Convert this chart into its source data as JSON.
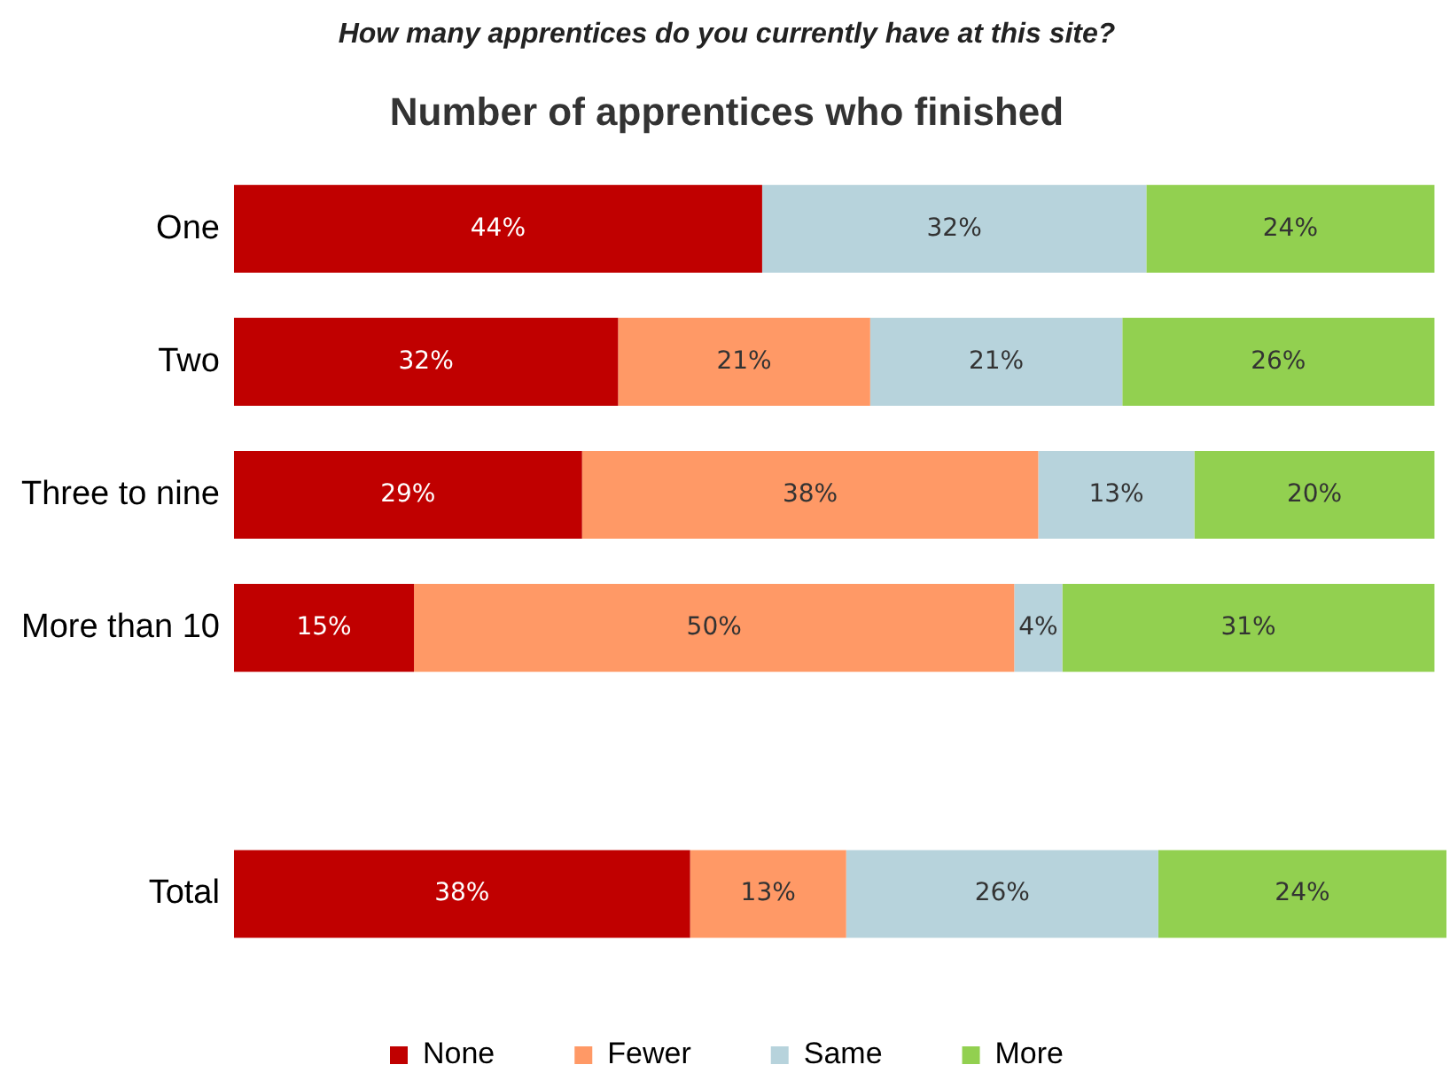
{
  "chart_data": {
    "type": "bar",
    "orientation": "horizontal",
    "stacked": true,
    "title": "How many apprentices do you currently have at this site?",
    "subtitle": "Number of apprentices who finished",
    "categories": [
      "One",
      "Two",
      "Three to nine",
      "More than 10",
      null,
      "Total"
    ],
    "legend": "bottom",
    "grid": false,
    "series": [
      {
        "name": "None",
        "color": "#c00000",
        "values": [
          44,
          32,
          29,
          15,
          null,
          38
        ],
        "value_labels": [
          "44%",
          "32%",
          "29%",
          "15%",
          null,
          "38%"
        ]
      },
      {
        "name": "Fewer",
        "color": "#ff9966",
        "values": [
          null,
          21,
          38,
          50,
          null,
          13
        ],
        "value_labels": [
          null,
          "21%",
          "38%",
          "50%",
          null,
          "13%"
        ]
      },
      {
        "name": "Same",
        "color": "#b7d3dc",
        "values": [
          32,
          21,
          13,
          4,
          null,
          26
        ],
        "value_labels": [
          "32%",
          "21%",
          "13%",
          "4%",
          null,
          "26%"
        ]
      },
      {
        "name": "More",
        "color": "#92d050",
        "values": [
          24,
          26,
          20,
          31,
          null,
          24
        ],
        "value_labels": [
          "24%",
          "26%",
          "20%",
          "31%",
          null,
          "24%"
        ]
      }
    ]
  }
}
